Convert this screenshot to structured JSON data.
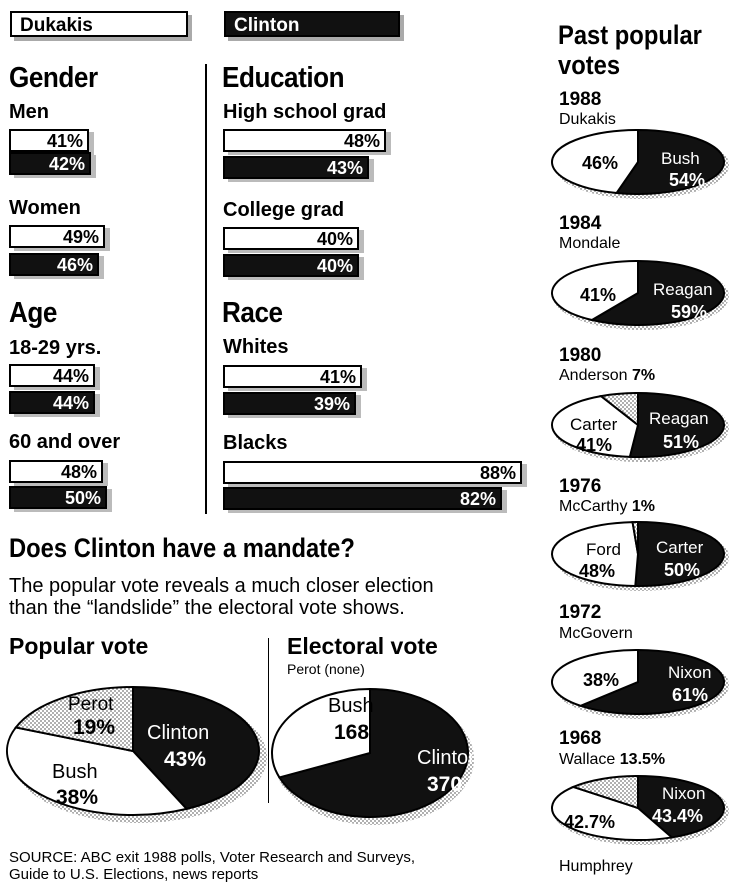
{
  "legend": {
    "dukakis": "Dukakis",
    "clinton": "Clinton"
  },
  "gender": {
    "title": "Gender",
    "men": {
      "label": "Men",
      "d": "41%",
      "c": "42%"
    },
    "women": {
      "label": "Women",
      "d": "49%",
      "c": "46%"
    }
  },
  "age": {
    "title": "Age",
    "young": {
      "label": "18-29 yrs.",
      "d": "44%",
      "c": "44%"
    },
    "old": {
      "label": "60 and over",
      "d": "48%",
      "c": "50%"
    }
  },
  "education": {
    "title": "Education",
    "hs": {
      "label": "High school grad",
      "d": "48%",
      "c": "43%"
    },
    "college": {
      "label": "College grad",
      "d": "40%",
      "c": "40%"
    }
  },
  "race": {
    "title": "Race",
    "whites": {
      "label": "Whites",
      "d": "41%",
      "c": "39%"
    },
    "blacks": {
      "label": "Blacks",
      "d": "88%",
      "c": "82%"
    }
  },
  "mandate": {
    "title": "Does Clinton have a mandate?",
    "line1": "The popular vote reveals a much closer election",
    "line2": "than the “landslide” the electoral vote shows."
  },
  "popular": {
    "title": "Popular vote",
    "perot_label": "Perot",
    "perot_val": "19%",
    "clinton_label": "Clinton",
    "clinton_val": "43%",
    "bush_label": "Bush",
    "bush_val": "38%"
  },
  "electoral": {
    "title": "Electoral vote",
    "perot_note": "Perot (none)",
    "bush_label": "Bush",
    "bush_val": "168",
    "clinton_label": "Clinton",
    "clinton_val": "370"
  },
  "source": {
    "line1": "SOURCE: ABC exit 1988 polls, Voter Research and Surveys,",
    "line2": "Guide to U.S. Elections, news reports"
  },
  "past": {
    "title1": "Past popular",
    "title2": "votes",
    "y1988": {
      "year": "1988",
      "left_name": "Dukakis",
      "left_val": "46%",
      "right_name": "Bush",
      "right_val": "54%"
    },
    "y1984": {
      "year": "1984",
      "left_name": "Mondale",
      "left_val": "41%",
      "right_name": "Reagan",
      "right_val": "59%"
    },
    "y1980": {
      "year": "1980",
      "third_name": "Anderson",
      "third_val": "7%",
      "left_name": "Carter",
      "left_val": "41%",
      "right_name": "Reagan",
      "right_val": "51%"
    },
    "y1976": {
      "year": "1976",
      "third_name": "McCarthy",
      "third_val": "1%",
      "left_name": "Ford",
      "left_val": "48%",
      "right_name": "Carter",
      "right_val": "50%"
    },
    "y1972": {
      "year": "1972",
      "left_name": "McGovern",
      "left_val": "38%",
      "right_name": "Nixon",
      "right_val": "61%"
    },
    "y1968": {
      "year": "1968",
      "third_name": "Wallace",
      "third_val": "13.5%",
      "left_val": "42.7%",
      "right_name": "Nixon",
      "right_val": "43.4%",
      "bottom_name": "Humphrey"
    }
  },
  "chart_data": [
    {
      "type": "bar",
      "title": "Gender",
      "categories": [
        "Men",
        "Women"
      ],
      "series": [
        {
          "name": "Dukakis",
          "values": [
            41,
            49
          ]
        },
        {
          "name": "Clinton",
          "values": [
            42,
            46
          ]
        }
      ]
    },
    {
      "type": "bar",
      "title": "Age",
      "categories": [
        "18-29 yrs.",
        "60 and over"
      ],
      "series": [
        {
          "name": "Dukakis",
          "values": [
            44,
            48
          ]
        },
        {
          "name": "Clinton",
          "values": [
            44,
            50
          ]
        }
      ]
    },
    {
      "type": "bar",
      "title": "Education",
      "categories": [
        "High school grad",
        "College grad"
      ],
      "series": [
        {
          "name": "Dukakis",
          "values": [
            48,
            40
          ]
        },
        {
          "name": "Clinton",
          "values": [
            43,
            40
          ]
        }
      ]
    },
    {
      "type": "bar",
      "title": "Race",
      "categories": [
        "Whites",
        "Blacks"
      ],
      "series": [
        {
          "name": "Dukakis",
          "values": [
            41,
            88
          ]
        },
        {
          "name": "Clinton",
          "values": [
            39,
            82
          ]
        }
      ]
    },
    {
      "type": "pie",
      "title": "Popular vote",
      "categories": [
        "Clinton",
        "Bush",
        "Perot"
      ],
      "values": [
        43,
        38,
        19
      ]
    },
    {
      "type": "pie",
      "title": "Electoral vote",
      "categories": [
        "Clinton",
        "Bush"
      ],
      "values": [
        370,
        168
      ]
    },
    {
      "type": "pie",
      "title": "1988",
      "categories": [
        "Dukakis",
        "Bush"
      ],
      "values": [
        46,
        54
      ]
    },
    {
      "type": "pie",
      "title": "1984",
      "categories": [
        "Mondale",
        "Reagan"
      ],
      "values": [
        41,
        59
      ]
    },
    {
      "type": "pie",
      "title": "1980",
      "categories": [
        "Carter",
        "Reagan",
        "Anderson"
      ],
      "values": [
        41,
        51,
        7
      ]
    },
    {
      "type": "pie",
      "title": "1976",
      "categories": [
        "Ford",
        "Carter",
        "McCarthy"
      ],
      "values": [
        48,
        50,
        1
      ]
    },
    {
      "type": "pie",
      "title": "1972",
      "categories": [
        "McGovern",
        "Nixon"
      ],
      "values": [
        38,
        61
      ]
    },
    {
      "type": "pie",
      "title": "1968",
      "categories": [
        "Humphrey",
        "Nixon",
        "Wallace"
      ],
      "values": [
        42.7,
        43.4,
        13.5
      ]
    }
  ]
}
